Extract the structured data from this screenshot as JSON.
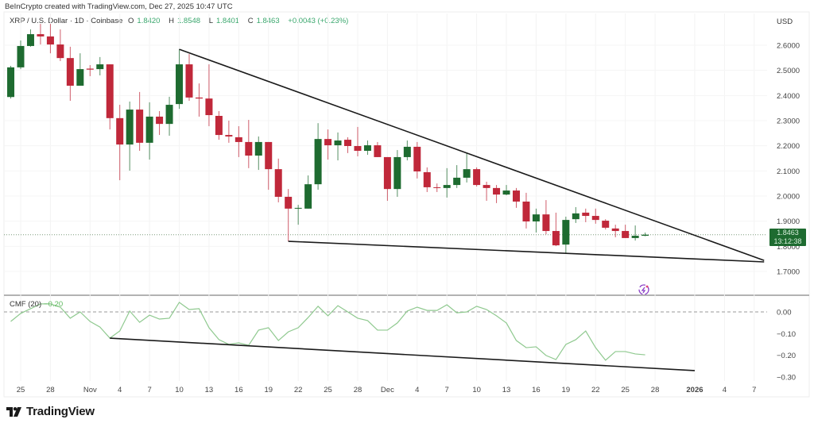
{
  "header": {
    "credit": "BeInCrypto created with TradingView.com, Dec 27, 2025 10:47 UTC",
    "symbol": "XRP / U.S. Dollar · 1D · Coinbase",
    "open_label": "O",
    "open": "1.8420",
    "high_label": "H",
    "high": "1.8548",
    "low_label": "L",
    "low": "1.8401",
    "close_label": "C",
    "close": "1.8463",
    "change": "+0.0043 (+0.23%)"
  },
  "price_axis": {
    "currency": "USD",
    "last_price": "1.8463",
    "countdown": "13:12:38"
  },
  "indicator": {
    "name": "CMF (20)",
    "value": "−0.20"
  },
  "branding": {
    "logo_text": "TradingView"
  },
  "colors": {
    "up": "#1e6b30",
    "down": "#c0283a",
    "cmf_line": "#8fc98f",
    "trendline": "#1a1a1a",
    "last_price_bg": "#1e6b30"
  },
  "chart_data": [
    {
      "type": "candlestick",
      "title": "XRP / U.S. Dollar · 1D · Coinbase",
      "ylim": [
        1.65,
        2.7
      ],
      "y_ticks": [
        "2.6000",
        "2.5000",
        "2.4000",
        "2.3000",
        "2.2000",
        "2.1000",
        "2.0000",
        "1.9000",
        "1.8000",
        "1.7000"
      ],
      "x_ticks": [
        {
          "label": "25",
          "date": "2025-10-25"
        },
        {
          "label": "28",
          "date": "2025-10-28"
        },
        {
          "label": "Nov",
          "date": "2025-11-01"
        },
        {
          "label": "4",
          "date": "2025-11-04"
        },
        {
          "label": "7",
          "date": "2025-11-07"
        },
        {
          "label": "10",
          "date": "2025-11-10"
        },
        {
          "label": "13",
          "date": "2025-11-13"
        },
        {
          "label": "16",
          "date": "2025-11-16"
        },
        {
          "label": "19",
          "date": "2025-11-19"
        },
        {
          "label": "22",
          "date": "2025-11-22"
        },
        {
          "label": "25",
          "date": "2025-11-25"
        },
        {
          "label": "28",
          "date": "2025-11-28"
        },
        {
          "label": "Dec",
          "date": "2025-12-01"
        },
        {
          "label": "4",
          "date": "2025-12-04"
        },
        {
          "label": "7",
          "date": "2025-12-07"
        },
        {
          "label": "10",
          "date": "2025-12-10"
        },
        {
          "label": "13",
          "date": "2025-12-13"
        },
        {
          "label": "16",
          "date": "2025-12-16"
        },
        {
          "label": "19",
          "date": "2025-12-19"
        },
        {
          "label": "22",
          "date": "2025-12-22"
        },
        {
          "label": "25",
          "date": "2025-12-25"
        },
        {
          "label": "28",
          "date": "2025-12-28"
        },
        {
          "label": "2026",
          "date": "2026-01-01"
        },
        {
          "label": "4",
          "date": "2026-01-04"
        },
        {
          "label": "7",
          "date": "2026-01-07"
        }
      ],
      "columns": [
        "date",
        "open",
        "high",
        "low",
        "close"
      ],
      "candles": [
        [
          "2025-10-24",
          2.394,
          2.518,
          2.388,
          2.512
        ],
        [
          "2025-10-25",
          2.512,
          2.619,
          2.505,
          2.597
        ],
        [
          "2025-10-26",
          2.597,
          2.663,
          2.594,
          2.644
        ],
        [
          "2025-10-27",
          2.644,
          2.685,
          2.603,
          2.635
        ],
        [
          "2025-10-28",
          2.635,
          2.685,
          2.568,
          2.603
        ],
        [
          "2025-10-29",
          2.603,
          2.663,
          2.537,
          2.549
        ],
        [
          "2025-10-30",
          2.549,
          2.594,
          2.379,
          2.439
        ],
        [
          "2025-10-31",
          2.439,
          2.568,
          2.439,
          2.505
        ],
        [
          "2025-11-01",
          2.507,
          2.521,
          2.477,
          2.503
        ],
        [
          "2025-11-02",
          2.505,
          2.553,
          2.48,
          2.524
        ],
        [
          "2025-11-03",
          2.524,
          2.524,
          2.265,
          2.31
        ],
        [
          "2025-11-04",
          2.31,
          2.363,
          2.063,
          2.205
        ],
        [
          "2025-11-05",
          2.205,
          2.376,
          2.101,
          2.344
        ],
        [
          "2025-11-06",
          2.344,
          2.414,
          2.18,
          2.212
        ],
        [
          "2025-11-07",
          2.212,
          2.373,
          2.145,
          2.316
        ],
        [
          "2025-11-08",
          2.316,
          2.338,
          2.243,
          2.287
        ],
        [
          "2025-11-09",
          2.287,
          2.395,
          2.24,
          2.363
        ],
        [
          "2025-11-10",
          2.366,
          2.584,
          2.347,
          2.524
        ],
        [
          "2025-11-11",
          2.524,
          2.565,
          2.379,
          2.392
        ],
        [
          "2025-11-12",
          2.392,
          2.448,
          2.316,
          2.388
        ],
        [
          "2025-11-13",
          2.388,
          2.524,
          2.278,
          2.322
        ],
        [
          "2025-11-14",
          2.319,
          2.338,
          2.224,
          2.243
        ],
        [
          "2025-11-15",
          2.243,
          2.3,
          2.212,
          2.237
        ],
        [
          "2025-11-16",
          2.234,
          2.278,
          2.155,
          2.215
        ],
        [
          "2025-11-17",
          2.215,
          2.303,
          2.111,
          2.161
        ],
        [
          "2025-11-18",
          2.161,
          2.237,
          2.104,
          2.215
        ],
        [
          "2025-11-19",
          2.215,
          2.215,
          2.025,
          2.107
        ],
        [
          "2025-11-20",
          2.107,
          2.149,
          1.975,
          1.997
        ],
        [
          "2025-11-21",
          1.997,
          2.028,
          1.82,
          1.95
        ],
        [
          "2025-11-22",
          1.95,
          1.965,
          1.886,
          1.953
        ],
        [
          "2025-11-23",
          1.95,
          2.082,
          1.95,
          2.047
        ],
        [
          "2025-11-24",
          2.047,
          2.29,
          2.025,
          2.227
        ],
        [
          "2025-11-25",
          2.227,
          2.265,
          2.145,
          2.202
        ],
        [
          "2025-11-26",
          2.202,
          2.253,
          2.142,
          2.221
        ],
        [
          "2025-11-27",
          2.224,
          2.234,
          2.171,
          2.199
        ],
        [
          "2025-11-28",
          2.199,
          2.275,
          2.158,
          2.18
        ],
        [
          "2025-11-29",
          2.18,
          2.221,
          2.164,
          2.202
        ],
        [
          "2025-11-30",
          2.202,
          2.215,
          2.155,
          2.155
        ],
        [
          "2025-12-01",
          2.155,
          2.155,
          1.981,
          2.028
        ],
        [
          "2025-12-02",
          2.028,
          2.183,
          1.997,
          2.155
        ],
        [
          "2025-12-03",
          2.155,
          2.221,
          2.142,
          2.196
        ],
        [
          "2025-12-04",
          2.196,
          2.215,
          2.07,
          2.098
        ],
        [
          "2025-12-05",
          2.095,
          2.114,
          2.016,
          2.035
        ],
        [
          "2025-12-06",
          2.035,
          2.05,
          2.016,
          2.032
        ],
        [
          "2025-12-07",
          2.032,
          2.111,
          1.994,
          2.044
        ],
        [
          "2025-12-08",
          2.044,
          2.123,
          2.032,
          2.073
        ],
        [
          "2025-12-09",
          2.073,
          2.171,
          2.054,
          2.107
        ],
        [
          "2025-12-10",
          2.107,
          2.114,
          2.038,
          2.044
        ],
        [
          "2025-12-11",
          2.044,
          2.057,
          1.981,
          2.032
        ],
        [
          "2025-12-12",
          2.032,
          2.044,
          1.972,
          2.006
        ],
        [
          "2025-12-13",
          2.006,
          2.044,
          2.003,
          2.022
        ],
        [
          "2025-12-14",
          2.022,
          2.032,
          1.953,
          1.978
        ],
        [
          "2025-12-15",
          1.978,
          2.013,
          1.871,
          1.899
        ],
        [
          "2025-12-16",
          1.899,
          1.95,
          1.855,
          1.927
        ],
        [
          "2025-12-17",
          1.927,
          1.984,
          1.848,
          1.861
        ],
        [
          "2025-12-18",
          1.861,
          1.934,
          1.801,
          1.804
        ],
        [
          "2025-12-19",
          1.807,
          1.918,
          1.773,
          1.905
        ],
        [
          "2025-12-20",
          1.908,
          1.956,
          1.893,
          1.931
        ],
        [
          "2025-12-21",
          1.934,
          1.95,
          1.896,
          1.921
        ],
        [
          "2025-12-22",
          1.921,
          1.95,
          1.89,
          1.905
        ],
        [
          "2025-12-23",
          1.902,
          1.908,
          1.867,
          1.874
        ],
        [
          "2025-12-24",
          1.871,
          1.886,
          1.836,
          1.861
        ],
        [
          "2025-12-25",
          1.861,
          1.886,
          1.833,
          1.833
        ],
        [
          "2025-12-26",
          1.833,
          1.883,
          1.823,
          1.842
        ],
        [
          "2025-12-27",
          1.842,
          1.8548,
          1.8401,
          1.8463
        ]
      ],
      "trendlines": [
        {
          "points": [
            {
              "date": "2025-11-10",
              "price": 2.584
            },
            {
              "date": "2026-01-08",
              "price": 1.744
            }
          ]
        },
        {
          "points": [
            {
              "date": "2025-11-21",
              "price": 1.82
            },
            {
              "date": "2026-01-08",
              "price": 1.738
            }
          ]
        }
      ],
      "last_price": 1.8463
    },
    {
      "type": "line",
      "title": "CMF (20)",
      "ylim": [
        -0.33,
        0.08
      ],
      "y_ticks": [
        "0.00",
        "−0.10",
        "−0.20",
        "−0.30"
      ],
      "zero_line": "dashed",
      "x": [
        "2025-10-24",
        "2025-10-25",
        "2025-10-26",
        "2025-10-27",
        "2025-10-28",
        "2025-10-29",
        "2025-10-30",
        "2025-10-31",
        "2025-11-01",
        "2025-11-02",
        "2025-11-03",
        "2025-11-04",
        "2025-11-05",
        "2025-11-06",
        "2025-11-07",
        "2025-11-08",
        "2025-11-09",
        "2025-11-10",
        "2025-11-11",
        "2025-11-12",
        "2025-11-13",
        "2025-11-14",
        "2025-11-15",
        "2025-11-16",
        "2025-11-17",
        "2025-11-18",
        "2025-11-19",
        "2025-11-20",
        "2025-11-21",
        "2025-11-22",
        "2025-11-23",
        "2025-11-24",
        "2025-11-25",
        "2025-11-26",
        "2025-11-27",
        "2025-11-28",
        "2025-11-29",
        "2025-11-30",
        "2025-12-01",
        "2025-12-02",
        "2025-12-03",
        "2025-12-04",
        "2025-12-05",
        "2025-12-06",
        "2025-12-07",
        "2025-12-08",
        "2025-12-09",
        "2025-12-10",
        "2025-12-11",
        "2025-12-12",
        "2025-12-13",
        "2025-12-14",
        "2025-12-15",
        "2025-12-16",
        "2025-12-17",
        "2025-12-18",
        "2025-12-19",
        "2025-12-20",
        "2025-12-21",
        "2025-12-22",
        "2025-12-23",
        "2025-12-24",
        "2025-12-25",
        "2025-12-26",
        "2025-12-27"
      ],
      "values": [
        -0.044,
        -0.007,
        0.015,
        0.037,
        0.037,
        0.022,
        -0.029,
        0.0,
        -0.044,
        -0.07,
        -0.121,
        -0.088,
        0.004,
        -0.048,
        -0.015,
        -0.033,
        -0.029,
        0.044,
        0.011,
        0.015,
        -0.073,
        -0.128,
        -0.15,
        -0.143,
        -0.154,
        -0.084,
        -0.073,
        -0.132,
        -0.092,
        -0.073,
        -0.026,
        0.026,
        -0.018,
        0.029,
        0.0,
        -0.029,
        -0.04,
        -0.084,
        -0.084,
        -0.051,
        0.004,
        0.022,
        0.007,
        0.007,
        0.033,
        -0.004,
        0.0,
        0.026,
        0.011,
        -0.018,
        -0.051,
        -0.132,
        -0.165,
        -0.161,
        -0.201,
        -0.22,
        -0.15,
        -0.128,
        -0.088,
        -0.165,
        -0.223,
        -0.183,
        -0.183,
        -0.194,
        -0.198
      ],
      "trendline": {
        "points": [
          {
            "date": "2025-11-03",
            "value": -0.121
          },
          {
            "date": "2026-01-01",
            "value": -0.271
          }
        ]
      }
    }
  ]
}
